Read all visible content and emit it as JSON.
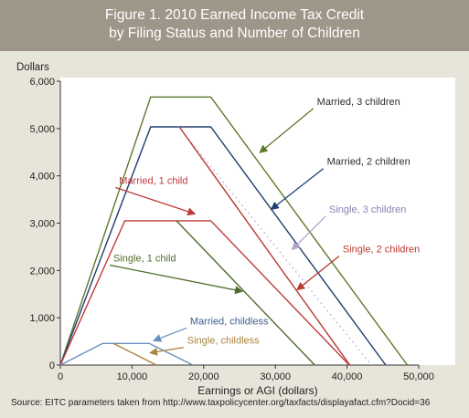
{
  "chart_data": {
    "type": "line",
    "title": "Figure 1. 2010 Earned Income Tax Credit",
    "subtitle": "by Filing Status and Number of Children",
    "ylabel": "Dollars",
    "xlabel": "Earnings or AGI (dollars)",
    "xlim": [
      0,
      50000
    ],
    "ylim": [
      0,
      6000
    ],
    "x_ticks": [
      0,
      10000,
      20000,
      30000,
      40000,
      50000
    ],
    "x_tick_labels": [
      "0",
      "10,000",
      "20,000",
      "30,000",
      "40,000",
      "50,000"
    ],
    "y_ticks": [
      0,
      1000,
      2000,
      3000,
      4000,
      5000,
      6000
    ],
    "y_tick_labels": [
      "0",
      "1,000",
      "2,000",
      "3,000",
      "4,000",
      "5,000",
      "6,000"
    ],
    "grid": false,
    "legend": "callout labels on lines",
    "series": [
      {
        "name": "Married, 3 children",
        "color": "#5c7a2e",
        "dash": false,
        "points": [
          [
            0,
            0
          ],
          [
            12600,
            5666
          ],
          [
            21000,
            5666
          ],
          [
            48400,
            0
          ]
        ]
      },
      {
        "name": "Married, 2 children",
        "color": "#1f3f6e",
        "dash": false,
        "points": [
          [
            0,
            0
          ],
          [
            12600,
            5036
          ],
          [
            21000,
            5036
          ],
          [
            45400,
            0
          ]
        ]
      },
      {
        "name": "Single, 3 children",
        "color": "#b3a6c9",
        "dash": true,
        "points": [
          [
            16500,
            5036
          ],
          [
            43400,
            0
          ]
        ]
      },
      {
        "name": "Single, 2 children",
        "color": "#b93a30",
        "dash": false,
        "points": [
          [
            16600,
            5036
          ],
          [
            40400,
            0
          ]
        ]
      },
      {
        "name": "Married, 1 child",
        "color": "#c0393b",
        "dash": false,
        "points": [
          [
            0,
            0
          ],
          [
            9000,
            3050
          ],
          [
            21000,
            3050
          ],
          [
            40300,
            0
          ]
        ]
      },
      {
        "name": "Single, 1 child",
        "color": "#4e6b2c",
        "dash": false,
        "points": [
          [
            16200,
            3050
          ],
          [
            35500,
            0
          ]
        ]
      },
      {
        "name": "Married, childless",
        "color": "#6a8fbc",
        "dash": false,
        "points": [
          [
            0,
            0
          ],
          [
            5900,
            457
          ],
          [
            12400,
            457
          ],
          [
            18500,
            0
          ]
        ]
      },
      {
        "name": "Single, childless",
        "color": "#a8843f",
        "dash": false,
        "points": [
          [
            7400,
            457
          ],
          [
            13400,
            0
          ]
        ]
      }
    ],
    "annotations": [
      {
        "text": "Married, 3 children",
        "series": 0,
        "color": "#2c2c2c",
        "label_at": [
          35800,
          5500
        ],
        "arrow_to": [
          27900,
          4500
        ]
      },
      {
        "text": "Married, 2 children",
        "series": 1,
        "color": "#2c2c2c",
        "label_at": [
          37200,
          4230
        ],
        "arrow_to": [
          29500,
          3300
        ]
      },
      {
        "text": "Single, 3 children",
        "series": 2,
        "color": "#8d7fb0",
        "label_at": [
          37500,
          3220
        ],
        "arrow_to": [
          32400,
          2450
        ]
      },
      {
        "text": "Single, 2 children",
        "series": 3,
        "color": "#b93a30",
        "label_at": [
          39400,
          2380
        ],
        "arrow_to": [
          33100,
          1600
        ]
      },
      {
        "text": "Married, 1 child",
        "series": 4,
        "color": "#c0393b",
        "label_at": [
          8200,
          3830
        ],
        "arrow_to": [
          18700,
          3200
        ]
      },
      {
        "text": "Single, 1 child",
        "series": 5,
        "color": "#4e6b2c",
        "label_at": [
          7400,
          2190
        ],
        "arrow_to": [
          25300,
          1560
        ]
      },
      {
        "text": "Married, childless",
        "series": 6,
        "color": "#3d5f8f",
        "label_at": [
          18100,
          860
        ],
        "arrow_to": [
          13100,
          520
        ]
      },
      {
        "text": "Single, childless",
        "series": 7,
        "color": "#a8843f",
        "label_at": [
          17700,
          450
        ],
        "arrow_to": [
          12600,
          260
        ]
      }
    ]
  },
  "source_note": "Source: EITC parameters taken from http://www.taxpolicycenter.org/taxfacts/displayafact.cfm?Docid=36"
}
